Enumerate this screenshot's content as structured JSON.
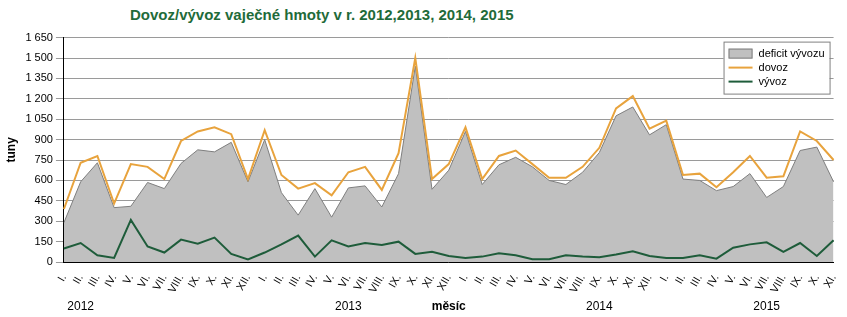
{
  "chart_data": {
    "type": "line",
    "title": "Dovoz/vývoz vaječné hmoty v r. 2012,2013, 2014, 2015",
    "x_label": "měsíc",
    "y_label": "tuny",
    "categories": [
      "I.",
      "II.",
      "III.",
      "IV.",
      "V.",
      "VI.",
      "VII.",
      "VIII.",
      "IX.",
      "X.",
      "XI.",
      "XII.",
      "I.",
      "II.",
      "III.",
      "IV.",
      "V.",
      "VI.",
      "VII.",
      "VIII.",
      "IX.",
      "X.",
      "XI.",
      "XII.",
      "I.",
      "II.",
      "III.",
      "IV.",
      "V.",
      "VI.",
      "VII.",
      "VIII.",
      "IX.",
      "X.",
      "XI.",
      "XII.",
      "I.",
      "II.",
      "III.",
      "IV.",
      "V.",
      "VI.",
      "VII.",
      "VIII.",
      "IX.",
      "X.",
      "XI."
    ],
    "annotations": [
      {
        "text": "2012",
        "index": 1
      },
      {
        "text": "2013",
        "index": 17
      },
      {
        "text": "2014",
        "index": 32
      },
      {
        "text": "2015",
        "index": 42
      }
    ],
    "series": [
      {
        "name": "deficit vývozu",
        "type": "area",
        "color": "#c0c0c0",
        "values": [
          290,
          590,
          730,
          400,
          410,
          585,
          540,
          725,
          825,
          810,
          880,
          590,
          900,
          510,
          345,
          540,
          330,
          545,
          560,
          405,
          650,
          1440,
          535,
          675,
          960,
          570,
          715,
          770,
          700,
          600,
          570,
          660,
          805,
          1075,
          1140,
          935,
          1010,
          610,
          600,
          525,
          555,
          650,
          475,
          555,
          820,
          845,
          590
        ]
      },
      {
        "name": "dovoz",
        "type": "line",
        "color": "#e8a33d",
        "values": [
          390,
          730,
          780,
          430,
          720,
          700,
          610,
          890,
          960,
          990,
          940,
          610,
          970,
          640,
          540,
          580,
          490,
          660,
          700,
          530,
          800,
          1500,
          610,
          720,
          990,
          610,
          780,
          820,
          720,
          620,
          620,
          700,
          840,
          1130,
          1220,
          980,
          1040,
          640,
          650,
          550,
          660,
          780,
          620,
          630,
          960,
          890,
          750
        ]
      },
      {
        "name": "vývoz",
        "type": "line",
        "color": "#1e5c3a",
        "values": [
          100,
          140,
          50,
          30,
          310,
          115,
          70,
          165,
          135,
          180,
          60,
          20,
          70,
          130,
          195,
          40,
          160,
          115,
          140,
          125,
          150,
          60,
          75,
          45,
          30,
          40,
          65,
          50,
          20,
          20,
          50,
          40,
          35,
          55,
          80,
          45,
          30,
          30,
          50,
          25,
          105,
          130,
          145,
          75,
          140,
          45,
          160
        ]
      }
    ],
    "ylim": [
      0,
      1650
    ],
    "yticks": [
      0,
      150,
      300,
      450,
      600,
      750,
      900,
      {
        "value": 1050,
        "label": "1 050"
      },
      {
        "value": 1200,
        "label": "1 200"
      },
      {
        "value": 1350,
        "label": "1 350"
      },
      {
        "value": 1500,
        "label": "1 500"
      },
      {
        "value": 1650,
        "label": "1 650"
      }
    ],
    "grid": true,
    "legend": "top right"
  }
}
